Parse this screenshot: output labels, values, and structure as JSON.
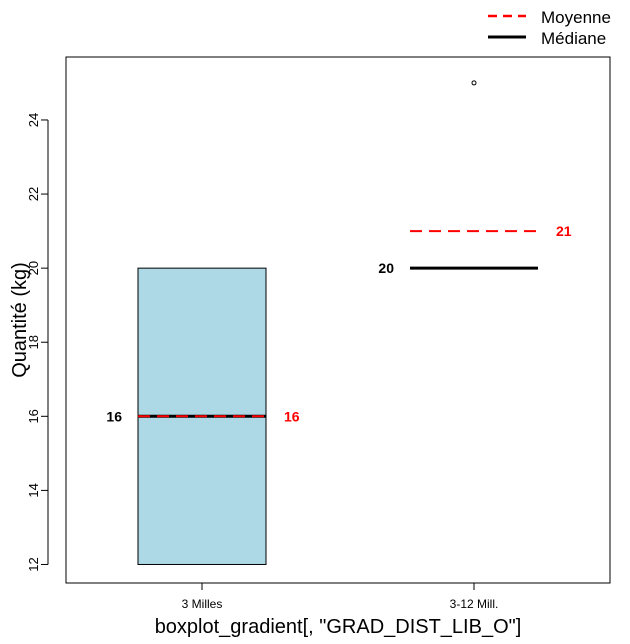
{
  "chart_data": {
    "type": "boxplot",
    "title": "",
    "xlabel": "boxplot_gradient[, \"GRAD_DIST_LIB_O\"]",
    "ylabel": "Quantité (kg)",
    "ylim": [
      11.5,
      25.7
    ],
    "yticks": [
      "12",
      "14",
      "16",
      "18",
      "20",
      "22",
      "24"
    ],
    "grid": false,
    "legend_position": "top-right",
    "legend": [
      {
        "label": "Moyenne",
        "color": "#ff0000",
        "style": "dashed"
      },
      {
        "label": "Médiane",
        "color": "#000000",
        "style": "solid"
      }
    ],
    "categories": [
      "3 Milles",
      "3-12 Mill."
    ],
    "boxes": [
      {
        "category": "3 Milles",
        "q1": 12,
        "median": 16,
        "q3": 20,
        "whisker_low": 12,
        "whisker_high": 20,
        "mean": 16,
        "outliers": [],
        "median_label": "16",
        "mean_label": "16",
        "fill": "#add8e6"
      },
      {
        "category": "3-12 Mill.",
        "q1": 20,
        "median": 20,
        "q3": 20,
        "whisker_low": 20,
        "whisker_high": 20,
        "mean": 21,
        "outliers": [
          25
        ],
        "median_label": "20",
        "mean_label": "21",
        "fill": "#add8e6"
      }
    ],
    "colors": {
      "mean": "#ff0000",
      "median": "#000000",
      "mean_label": "#ff0000",
      "median_label": "#000000"
    }
  }
}
